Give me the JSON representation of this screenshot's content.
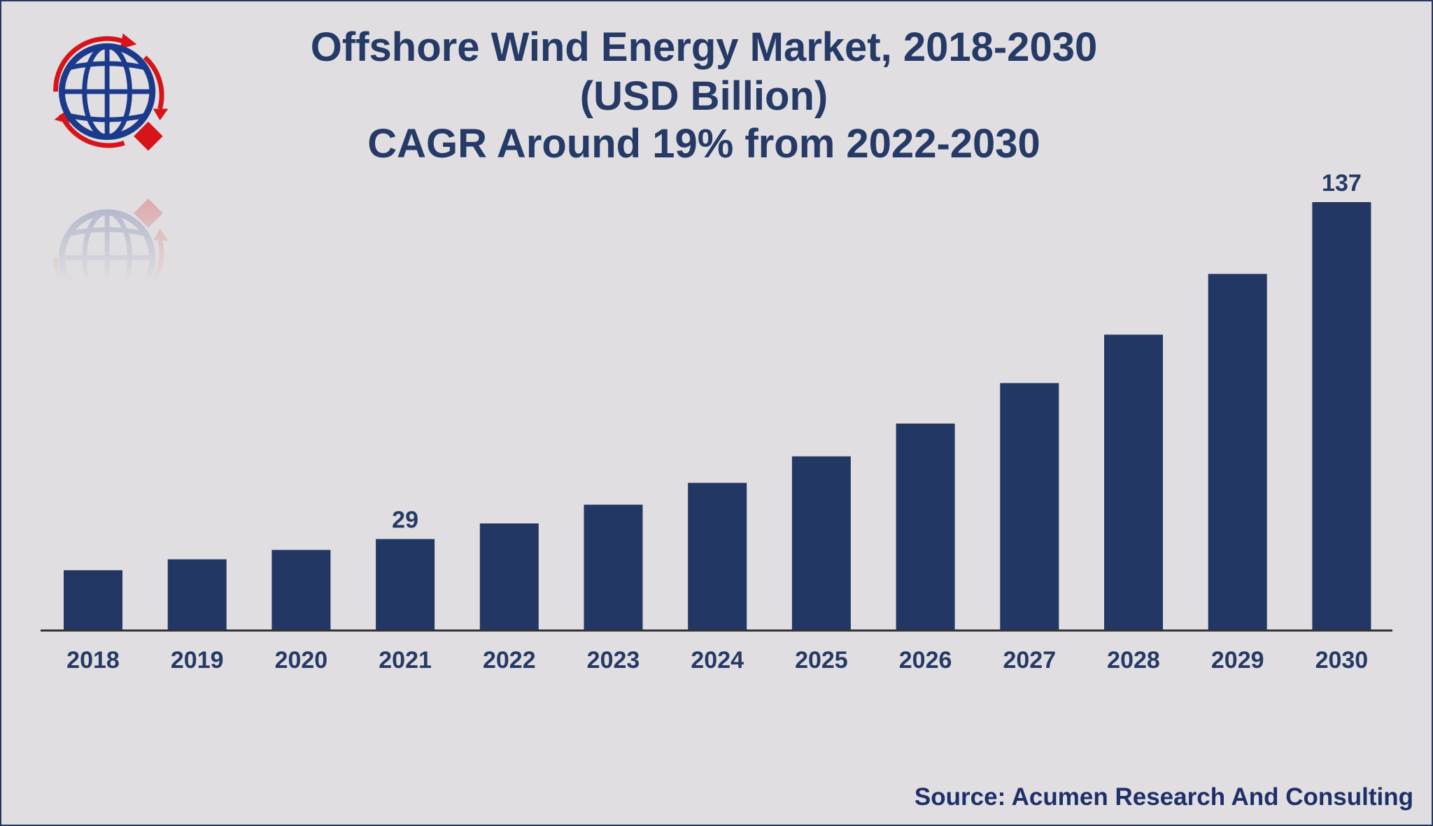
{
  "header": {
    "title_line_1": "Offshore Wind Energy Market, 2018-2030",
    "title_line_2": "(USD Billion)",
    "title_line_3": "CAGR Around 19% from 2022-2030"
  },
  "footer": {
    "source": "Source: Acumen Research And Consulting"
  },
  "logo": {
    "icon": "globe-logo-icon",
    "colors": {
      "globe": "#1c3a8c",
      "arrows": "#d7141a"
    }
  },
  "colors": {
    "background": "#e0dee0",
    "bar": "#223763",
    "text": "#253a66",
    "axis": "#333333",
    "border": "#23395f"
  },
  "chart_data": {
    "type": "bar",
    "title": "Offshore Wind Energy Market, 2018-2030",
    "subtitle": "(USD Billion)",
    "xlabel": "",
    "ylabel": "",
    "categories": [
      "2018",
      "2019",
      "2020",
      "2021",
      "2022",
      "2023",
      "2024",
      "2025",
      "2026",
      "2027",
      "2028",
      "2029",
      "2030"
    ],
    "values": [
      19,
      22.5,
      25.5,
      29,
      34,
      40,
      47,
      55.5,
      66,
      79,
      94.5,
      114,
      137
    ],
    "data_labels": [
      {
        "category": "2021",
        "text": "29"
      },
      {
        "category": "2030",
        "text": "137"
      }
    ],
    "ylim": [
      0,
      137
    ],
    "grid": false,
    "legend": "none"
  }
}
